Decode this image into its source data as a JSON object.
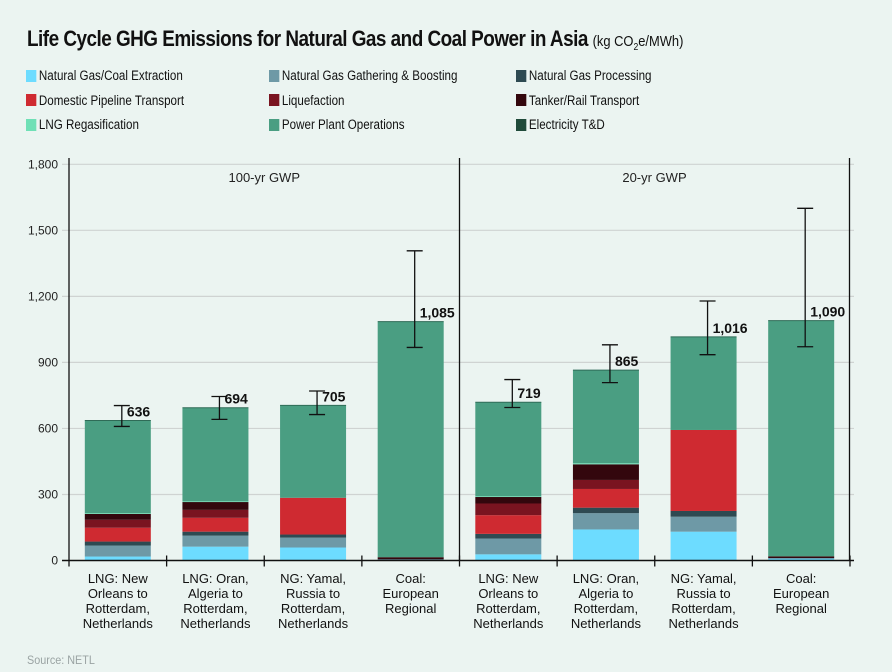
{
  "title": "Life Cycle GHG Emissions for Natural Gas and Coal Power in Asia",
  "unit_prefix": "(kg CO",
  "unit_sub": "2",
  "unit_suffix": "e/MWh)",
  "source": "Source: NETL",
  "colors": {
    "extraction": "#6ddcff",
    "gathering": "#6e99a6",
    "processing": "#2e4a52",
    "pipeline": "#cf2a31",
    "liquefaction": "#7a1420",
    "tanker": "#33070d",
    "regas": "#6fe0b6",
    "power": "#4a9e82",
    "td": "#1f4a3a"
  },
  "chart_data": {
    "type": "bar",
    "stacked": true,
    "title": "Life Cycle GHG Emissions for Natural Gas and Coal Power in Asia (kg CO2e/MWh)",
    "xlabel": "",
    "ylabel": "kg CO2e/MWh",
    "ylim": [
      0,
      1800
    ],
    "yticks": [
      0,
      300,
      600,
      900,
      1200,
      1500,
      1800
    ],
    "ytick_labels": [
      "0",
      "300",
      "600",
      "900",
      "1,200",
      "1,500",
      "1,800"
    ],
    "grid": true,
    "legend_position": "top",
    "panels": [
      {
        "label": "100-yr GWP",
        "categories": [
          0,
          1,
          2,
          3
        ]
      },
      {
        "label": "20-yr GWP",
        "categories": [
          4,
          5,
          6,
          7
        ]
      }
    ],
    "categories": [
      [
        "LNG: New",
        "Orleans to",
        "Rotterdam,",
        "Netherlands"
      ],
      [
        "LNG: Oran,",
        "Algeria to",
        "Rotterdam,",
        "Netherlands"
      ],
      [
        "NG: Yamal,",
        "Russia to",
        "Rotterdam,",
        "Netherlands"
      ],
      [
        "Coal:",
        "European",
        "Regional"
      ],
      [
        "LNG: New",
        "Orleans to",
        "Rotterdam,",
        "Netherlands"
      ],
      [
        "LNG: Oran,",
        "Algeria to",
        "Rotterdam,",
        "Netherlands"
      ],
      [
        "NG: Yamal,",
        "Russia to",
        "Rotterdam,",
        "Netherlands"
      ],
      [
        "Coal:",
        "European",
        "Regional"
      ]
    ],
    "series": [
      {
        "key": "extraction",
        "name": "Natural Gas/Coal Extraction",
        "values": [
          18,
          63,
          59,
          5,
          28,
          141,
          131,
          10
        ]
      },
      {
        "key": "gathering",
        "name": "Natural Gas Gathering & Boosting",
        "values": [
          50,
          50,
          45,
          0,
          72,
          74,
          68,
          0
        ]
      },
      {
        "key": "processing",
        "name": "Natural Gas Processing",
        "values": [
          18,
          18,
          14,
          0,
          21,
          25,
          26,
          0
        ]
      },
      {
        "key": "pipeline",
        "name": "Domestic Pipeline Transport",
        "values": [
          63,
          63,
          167,
          0,
          85,
          85,
          368,
          0
        ]
      },
      {
        "key": "liquefaction",
        "name": "Liquefaction",
        "values": [
          36,
          36,
          0,
          0,
          53,
          41,
          0,
          0
        ]
      },
      {
        "key": "tanker",
        "name": "Tanker/Rail Transport",
        "values": [
          27,
          36,
          0,
          10,
          30,
          71,
          0,
          9
        ]
      },
      {
        "key": "regas",
        "name": "LNG Regasification",
        "values": [
          3,
          3,
          0,
          0,
          3,
          5,
          0,
          0
        ]
      },
      {
        "key": "power",
        "name": "Power Plant Operations",
        "values": [
          421,
          425,
          420,
          1070,
          427,
          423,
          423,
          1071
        ]
      },
      {
        "key": "td",
        "name": "Electricity T&D",
        "values": [
          0,
          0,
          0,
          0,
          0,
          0,
          0,
          0
        ]
      }
    ],
    "totals": [
      636,
      694,
      705,
      1085,
      719,
      865,
      1016,
      1090
    ],
    "total_labels": [
      "636",
      "694",
      "705",
      "1,085",
      "719",
      "865",
      "1,016",
      "1,090"
    ],
    "error_bars": [
      {
        "low": 609,
        "high": 704
      },
      {
        "low": 641,
        "high": 745
      },
      {
        "low": 663,
        "high": 770
      },
      {
        "low": 968,
        "high": 1407
      },
      {
        "low": 695,
        "high": 822
      },
      {
        "low": 808,
        "high": 980
      },
      {
        "low": 935,
        "high": 1179
      },
      {
        "low": 971,
        "high": 1600
      }
    ]
  }
}
